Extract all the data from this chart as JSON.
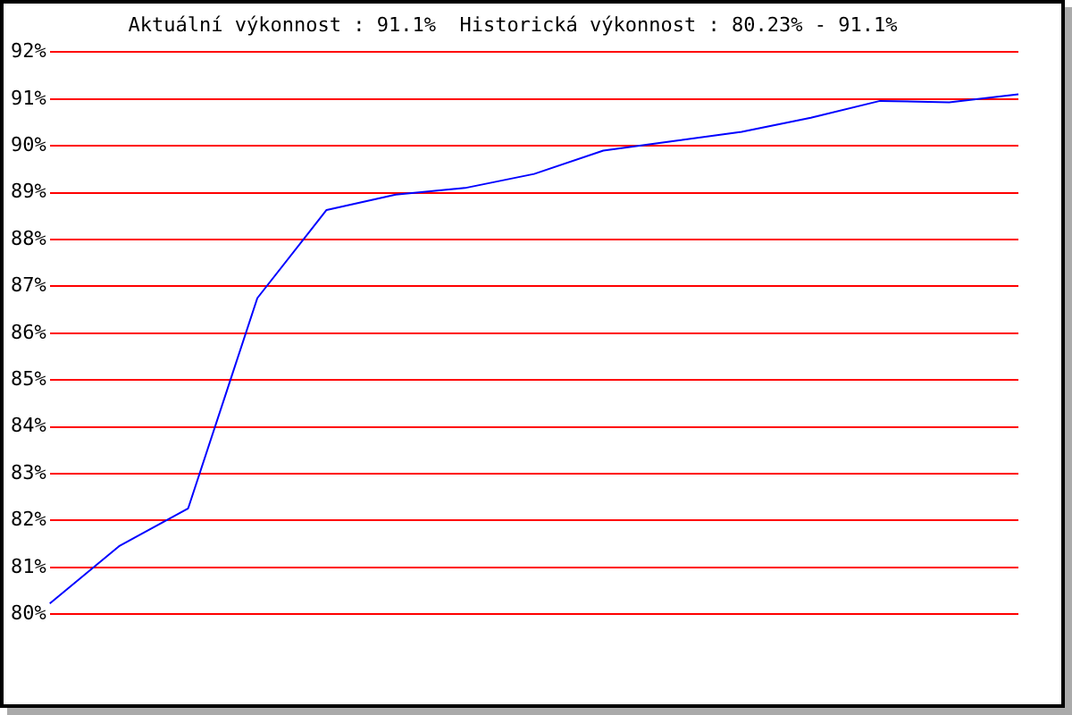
{
  "chart_data": {
    "type": "line",
    "title": "Aktuální výkonnost : 91.1%  Historická výkonnost : 80.23% - 91.1%",
    "categories": [
      null,
      null,
      null,
      null,
      null,
      null,
      null,
      null,
      null,
      null,
      null,
      null,
      null,
      null,
      null
    ],
    "series": [
      {
        "color": "#0000ff",
        "values": [
          80.23,
          81.45,
          82.26,
          86.75,
          88.63,
          88.96,
          89.1,
          89.4,
          89.9,
          90.1,
          90.3,
          90.6,
          90.96,
          90.93,
          91.1
        ]
      }
    ],
    "ylim": [
      80,
      92
    ],
    "yticks": [
      {
        "value": 80,
        "label": "80%"
      },
      {
        "value": 81,
        "label": "81%"
      },
      {
        "value": 82,
        "label": "82%"
      },
      {
        "value": 83,
        "label": "83%"
      },
      {
        "value": 84,
        "label": "84%"
      },
      {
        "value": 85,
        "label": "85%"
      },
      {
        "value": 86,
        "label": "86%"
      },
      {
        "value": 87,
        "label": "87%"
      },
      {
        "value": 88,
        "label": "88%"
      },
      {
        "value": 89,
        "label": "89%"
      },
      {
        "value": 90,
        "label": "90%"
      },
      {
        "value": 91,
        "label": "91%"
      },
      {
        "value": 92,
        "label": "92%"
      }
    ],
    "grid": "y",
    "legend": false,
    "marker": "none",
    "line_style": "solid"
  }
}
